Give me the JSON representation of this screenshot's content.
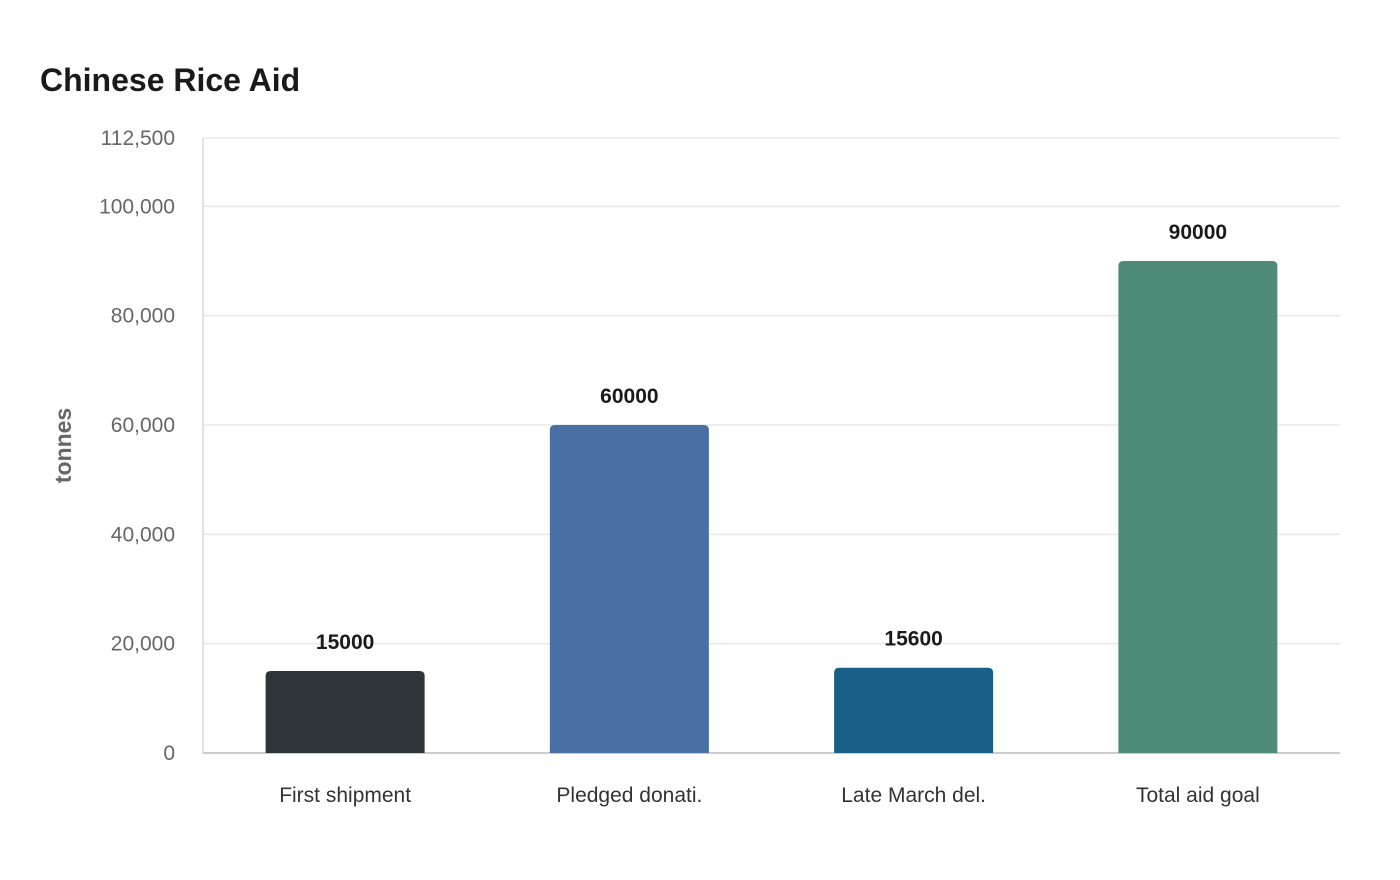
{
  "chart_data": {
    "type": "bar",
    "title": "Chinese Rice Aid",
    "xlabel": "",
    "ylabel": "tonnes",
    "categories": [
      "First shipment",
      "Pledged donati.",
      "Late March del.",
      "Total aid goal"
    ],
    "values": [
      15000,
      60000,
      15600,
      90000
    ],
    "data_labels": [
      "15000",
      "60000",
      "15600",
      "90000"
    ],
    "colors": [
      "#2d3539",
      "#4a6fa5",
      "#186088",
      "#4e8b79"
    ],
    "ylim": [
      0,
      112500
    ],
    "yticks": [
      0,
      20000,
      40000,
      60000,
      80000,
      100000,
      112500
    ],
    "ytick_labels": [
      "0",
      "20,000",
      "40,000",
      "60,000",
      "80,000",
      "100,000",
      "112,500"
    ],
    "grid": true,
    "legend": "none"
  }
}
